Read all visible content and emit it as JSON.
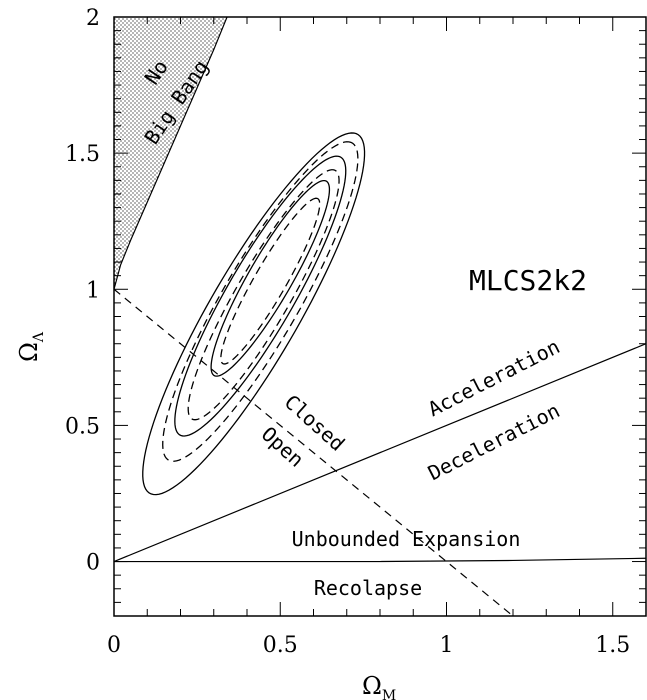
{
  "chart_data": {
    "type": "line",
    "title": "",
    "xlabel": "Ω_M",
    "ylabel": "Ω_Λ",
    "xlabel_main": "Ω",
    "xlabel_sub": "M",
    "ylabel_main": "Ω",
    "ylabel_sub": "Λ",
    "xlim": [
      0,
      1.6
    ],
    "ylim": [
      -0.2,
      2
    ],
    "xticks": [
      0,
      0.5,
      1,
      1.5
    ],
    "xtick_labels": [
      "0",
      "0.5",
      "1",
      "1.5"
    ],
    "yticks": [
      0,
      0.5,
      1,
      1.5,
      2
    ],
    "ytick_labels": [
      "0",
      "0.5",
      "1",
      "1.5",
      "2"
    ],
    "grid": false,
    "annotations": {
      "model": "MLCS2k2",
      "no_big_bang_1": "No",
      "no_big_bang_2": "Big Bang",
      "closed": "Closed",
      "open": "Open",
      "acceleration": "Acceleration",
      "deceleration": "Deceleration",
      "unbounded": "Unbounded Expansion",
      "recollapse": "Recolapse"
    },
    "lines": {
      "flat_universe": {
        "style": "dashed",
        "x": [
          0,
          1.2
        ],
        "y": [
          1,
          -0.2
        ]
      },
      "acceleration_boundary": {
        "style": "solid",
        "x": [
          0,
          1.6
        ],
        "y": [
          0,
          0.8
        ]
      },
      "unbounded_boundary": {
        "style": "solid",
        "x": [
          0,
          0.8,
          1.2,
          1.6
        ],
        "y": [
          0,
          0,
          0.004,
          0.012
        ]
      },
      "no_big_bang_boundary": {
        "style": "solid",
        "x": [
          0,
          0.02,
          0.05,
          0.1,
          0.15,
          0.2,
          0.25,
          0.3,
          0.34
        ],
        "y": [
          1.0,
          1.09,
          1.18,
          1.32,
          1.46,
          1.6,
          1.74,
          1.88,
          2.0
        ]
      }
    },
    "contours": [
      {
        "style": "solid",
        "level": "inner",
        "center": [
          0.47,
          1.04
        ],
        "semi_major": 0.395,
        "semi_minor": 0.068,
        "angle_deg": 65
      },
      {
        "style": "solid",
        "level": "middle",
        "center": [
          0.44,
          0.975
        ],
        "semi_major": 0.565,
        "semi_minor": 0.105,
        "angle_deg": 65
      },
      {
        "style": "solid",
        "level": "outer",
        "center": [
          0.42,
          0.91
        ],
        "semi_major": 0.73,
        "semi_minor": 0.14,
        "angle_deg": 65
      },
      {
        "style": "dashed",
        "level": "inner",
        "center": [
          0.47,
          1.03
        ],
        "semi_major": 0.335,
        "semi_minor": 0.05,
        "angle_deg": 65
      },
      {
        "style": "dashed",
        "level": "middle",
        "center": [
          0.45,
          0.98
        ],
        "semi_major": 0.505,
        "semi_minor": 0.085,
        "angle_deg": 65
      },
      {
        "style": "dashed",
        "level": "outer",
        "center": [
          0.44,
          0.955
        ],
        "semi_major": 0.645,
        "semi_minor": 0.12,
        "angle_deg": 65
      }
    ]
  }
}
